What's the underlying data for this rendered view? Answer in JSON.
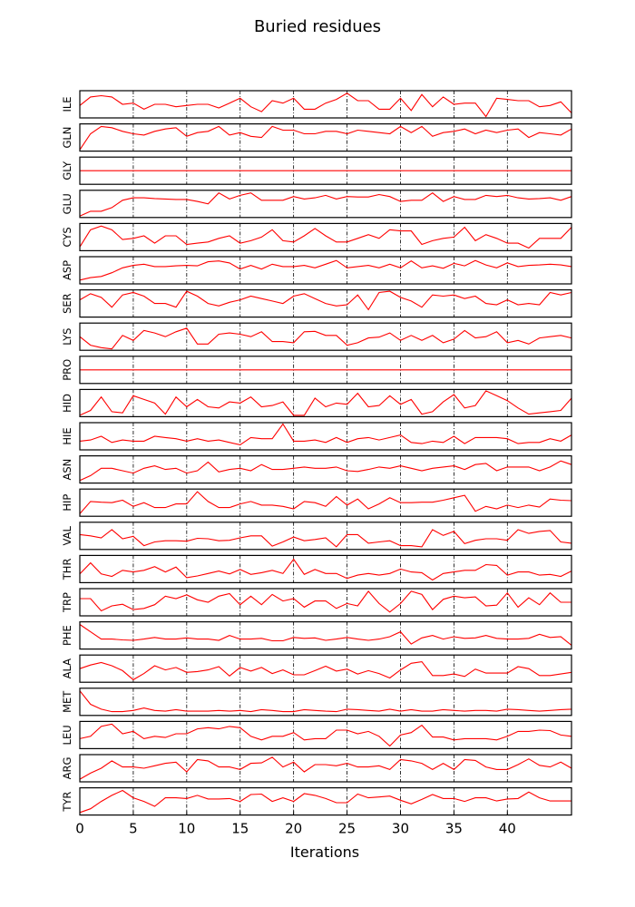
{
  "chart_data": {
    "type": "line",
    "title": "Buried residues",
    "xlabel": "Iterations",
    "ylabel": "",
    "xlim": [
      0,
      46
    ],
    "xticks": [
      0,
      5,
      10,
      15,
      20,
      25,
      30,
      35,
      40
    ],
    "grid": "vertical dash-dot at x ticks",
    "line_color": "#ff0000",
    "x": [
      0,
      1,
      2,
      3,
      4,
      5,
      6,
      7,
      8,
      9,
      10,
      11,
      12,
      13,
      14,
      15,
      16,
      17,
      18,
      19,
      20,
      21,
      22,
      23,
      24,
      25,
      26,
      27,
      28,
      29,
      30,
      31,
      32,
      33,
      34,
      35,
      36,
      37,
      38,
      39,
      40,
      41,
      42,
      43,
      44,
      45,
      46
    ],
    "series": [
      {
        "name": "ILE",
        "ylim": [
          0,
          1
        ],
        "values": [
          0.45,
          0.8,
          0.85,
          0.8,
          0.5,
          0.55,
          0.3,
          0.5,
          0.5,
          0.4,
          0.45,
          0.5,
          0.5,
          0.35,
          0.55,
          0.75,
          0.4,
          0.2,
          0.65,
          0.55,
          0.75,
          0.3,
          0.3,
          0.55,
          0.7,
          0.95,
          0.65,
          0.65,
          0.3,
          0.3,
          0.75,
          0.25,
          0.9,
          0.4,
          0.8,
          0.5,
          0.55,
          0.55,
          0.0,
          0.75,
          0.7,
          0.65,
          0.65,
          0.4,
          0.45,
          0.6,
          0.15
        ]
      },
      {
        "name": "GLN",
        "ylim": [
          0,
          1
        ],
        "values": [
          0.0,
          0.65,
          0.95,
          0.9,
          0.75,
          0.65,
          0.6,
          0.75,
          0.85,
          0.9,
          0.55,
          0.7,
          0.75,
          0.95,
          0.6,
          0.7,
          0.55,
          0.5,
          0.95,
          0.8,
          0.8,
          0.65,
          0.65,
          0.75,
          0.75,
          0.65,
          0.8,
          0.75,
          0.7,
          0.65,
          0.95,
          0.7,
          0.95,
          0.55,
          0.7,
          0.75,
          0.85,
          0.65,
          0.8,
          0.7,
          0.8,
          0.85,
          0.5,
          0.7,
          0.65,
          0.6,
          0.85
        ]
      },
      {
        "name": "GLY",
        "ylim": [
          0,
          1
        ],
        "values": [
          0.5,
          0.5,
          0.5,
          0.5,
          0.5,
          0.5,
          0.5,
          0.5,
          0.5,
          0.5,
          0.5,
          0.5,
          0.5,
          0.5,
          0.5,
          0.5,
          0.5,
          0.5,
          0.5,
          0.5,
          0.5,
          0.5,
          0.5,
          0.5,
          0.5,
          0.5,
          0.5,
          0.5,
          0.5,
          0.5,
          0.5,
          0.5,
          0.5,
          0.5,
          0.5,
          0.5,
          0.5,
          0.5,
          0.5,
          0.5,
          0.5,
          0.5,
          0.5,
          0.5,
          0.5,
          0.5,
          0.5
        ]
      },
      {
        "name": "GLU",
        "ylim": [
          0,
          1
        ],
        "values": [
          0.0,
          0.2,
          0.2,
          0.35,
          0.65,
          0.75,
          0.75,
          0.72,
          0.7,
          0.68,
          0.68,
          0.6,
          0.5,
          0.95,
          0.7,
          0.85,
          0.95,
          0.65,
          0.65,
          0.65,
          0.8,
          0.7,
          0.75,
          0.85,
          0.7,
          0.8,
          0.78,
          0.78,
          0.88,
          0.8,
          0.6,
          0.65,
          0.65,
          0.95,
          0.6,
          0.8,
          0.68,
          0.68,
          0.85,
          0.8,
          0.85,
          0.75,
          0.7,
          0.72,
          0.75,
          0.65,
          0.8
        ]
      },
      {
        "name": "CYS",
        "ylim": [
          0,
          1
        ],
        "values": [
          0.1,
          0.8,
          0.95,
          0.8,
          0.4,
          0.45,
          0.55,
          0.25,
          0.55,
          0.55,
          0.2,
          0.25,
          0.3,
          0.45,
          0.55,
          0.25,
          0.35,
          0.5,
          0.8,
          0.35,
          0.3,
          0.55,
          0.85,
          0.55,
          0.3,
          0.3,
          0.45,
          0.6,
          0.45,
          0.8,
          0.75,
          0.75,
          0.2,
          0.35,
          0.45,
          0.5,
          0.9,
          0.35,
          0.6,
          0.45,
          0.25,
          0.25,
          0.05,
          0.45,
          0.45,
          0.45,
          0.9
        ]
      },
      {
        "name": "ASP",
        "ylim": [
          0,
          1
        ],
        "values": [
          0.1,
          0.2,
          0.25,
          0.4,
          0.6,
          0.7,
          0.75,
          0.65,
          0.65,
          0.68,
          0.7,
          0.68,
          0.85,
          0.88,
          0.8,
          0.55,
          0.7,
          0.55,
          0.75,
          0.65,
          0.65,
          0.7,
          0.6,
          0.75,
          0.9,
          0.6,
          0.65,
          0.7,
          0.6,
          0.75,
          0.6,
          0.88,
          0.6,
          0.68,
          0.58,
          0.78,
          0.68,
          0.9,
          0.72,
          0.6,
          0.8,
          0.65,
          0.7,
          0.72,
          0.75,
          0.72,
          0.65
        ]
      },
      {
        "name": "SER",
        "ylim": [
          0,
          1
        ],
        "values": [
          0.65,
          0.9,
          0.75,
          0.35,
          0.85,
          0.95,
          0.8,
          0.5,
          0.5,
          0.35,
          1.0,
          0.8,
          0.5,
          0.4,
          0.55,
          0.65,
          0.8,
          0.7,
          0.6,
          0.5,
          0.8,
          0.9,
          0.7,
          0.5,
          0.4,
          0.45,
          0.85,
          0.25,
          0.95,
          1.0,
          0.75,
          0.6,
          0.35,
          0.85,
          0.8,
          0.85,
          0.7,
          0.8,
          0.5,
          0.45,
          0.65,
          0.45,
          0.5,
          0.45,
          0.95,
          0.85,
          0.95
        ]
      },
      {
        "name": "LYS",
        "ylim": [
          0,
          1
        ],
        "values": [
          0.5,
          0.15,
          0.05,
          0.0,
          0.55,
          0.35,
          0.75,
          0.65,
          0.5,
          0.7,
          0.85,
          0.2,
          0.2,
          0.6,
          0.65,
          0.6,
          0.5,
          0.7,
          0.3,
          0.3,
          0.25,
          0.7,
          0.72,
          0.55,
          0.55,
          0.15,
          0.25,
          0.45,
          0.48,
          0.65,
          0.35,
          0.55,
          0.35,
          0.55,
          0.25,
          0.4,
          0.75,
          0.45,
          0.5,
          0.7,
          0.25,
          0.35,
          0.2,
          0.45,
          0.5,
          0.55,
          0.45
        ]
      },
      {
        "name": "PRO",
        "ylim": [
          0,
          1
        ],
        "values": [
          0.5,
          0.5,
          0.5,
          0.5,
          0.5,
          0.5,
          0.5,
          0.5,
          0.5,
          0.5,
          0.5,
          0.5,
          0.5,
          0.5,
          0.5,
          0.5,
          0.5,
          0.5,
          0.5,
          0.5,
          0.5,
          0.5,
          0.5,
          0.5,
          0.5,
          0.5,
          0.5,
          0.5,
          0.5,
          0.5,
          0.5,
          0.5,
          0.5,
          0.5,
          0.5,
          0.5,
          0.5,
          0.5,
          0.5,
          0.5,
          0.5,
          0.5,
          0.5,
          0.5,
          0.5,
          0.5,
          0.5
        ]
      },
      {
        "name": "HID",
        "ylim": [
          0,
          1
        ],
        "values": [
          0.0,
          0.2,
          0.75,
          0.15,
          0.1,
          0.8,
          0.65,
          0.5,
          0.05,
          0.75,
          0.35,
          0.65,
          0.35,
          0.3,
          0.55,
          0.5,
          0.75,
          0.35,
          0.4,
          0.55,
          0.0,
          0.0,
          0.7,
          0.35,
          0.5,
          0.45,
          0.9,
          0.35,
          0.4,
          0.8,
          0.45,
          0.65,
          0.05,
          0.15,
          0.55,
          0.85,
          0.3,
          0.4,
          1.0,
          0.8,
          0.6,
          0.3,
          0.05,
          0.1,
          0.15,
          0.2,
          0.7
        ]
      },
      {
        "name": "HIE",
        "ylim": [
          0,
          1
        ],
        "values": [
          0.3,
          0.35,
          0.5,
          0.25,
          0.35,
          0.3,
          0.3,
          0.5,
          0.45,
          0.4,
          0.3,
          0.4,
          0.3,
          0.35,
          0.25,
          0.15,
          0.45,
          0.4,
          0.4,
          1.0,
          0.3,
          0.3,
          0.35,
          0.25,
          0.45,
          0.25,
          0.4,
          0.45,
          0.35,
          0.45,
          0.55,
          0.25,
          0.2,
          0.3,
          0.25,
          0.5,
          0.2,
          0.45,
          0.45,
          0.45,
          0.4,
          0.2,
          0.25,
          0.25,
          0.4,
          0.3,
          0.55
        ]
      },
      {
        "name": "ASN",
        "ylim": [
          0,
          1
        ],
        "values": [
          0.05,
          0.25,
          0.55,
          0.55,
          0.45,
          0.35,
          0.55,
          0.65,
          0.5,
          0.55,
          0.35,
          0.45,
          0.8,
          0.4,
          0.5,
          0.55,
          0.45,
          0.7,
          0.5,
          0.5,
          0.55,
          0.6,
          0.55,
          0.55,
          0.6,
          0.45,
          0.42,
          0.5,
          0.6,
          0.55,
          0.65,
          0.55,
          0.45,
          0.55,
          0.6,
          0.65,
          0.5,
          0.7,
          0.75,
          0.45,
          0.6,
          0.6,
          0.6,
          0.45,
          0.6,
          0.85,
          0.7
        ]
      },
      {
        "name": "HIP",
        "ylim": [
          0,
          1
        ],
        "values": [
          0.05,
          0.55,
          0.52,
          0.5,
          0.6,
          0.35,
          0.5,
          0.3,
          0.3,
          0.45,
          0.45,
          0.95,
          0.55,
          0.3,
          0.3,
          0.45,
          0.55,
          0.4,
          0.4,
          0.35,
          0.25,
          0.55,
          0.5,
          0.35,
          0.75,
          0.4,
          0.65,
          0.25,
          0.45,
          0.7,
          0.5,
          0.5,
          0.52,
          0.52,
          0.6,
          0.7,
          0.8,
          0.15,
          0.35,
          0.25,
          0.4,
          0.3,
          0.4,
          0.32,
          0.65,
          0.6,
          0.58
        ]
      },
      {
        "name": "VAL",
        "ylim": [
          0,
          1
        ],
        "values": [
          0.55,
          0.5,
          0.42,
          0.75,
          0.38,
          0.48,
          0.1,
          0.25,
          0.3,
          0.3,
          0.28,
          0.4,
          0.38,
          0.3,
          0.32,
          0.42,
          0.5,
          0.5,
          0.08,
          0.25,
          0.45,
          0.3,
          0.35,
          0.42,
          0.05,
          0.55,
          0.55,
          0.2,
          0.25,
          0.3,
          0.1,
          0.1,
          0.05,
          0.75,
          0.52,
          0.68,
          0.18,
          0.32,
          0.38,
          0.38,
          0.32,
          0.75,
          0.6,
          0.68,
          0.72,
          0.25,
          0.2
        ]
      },
      {
        "name": "THR",
        "ylim": [
          0,
          1
        ],
        "values": [
          0.3,
          0.75,
          0.3,
          0.2,
          0.45,
          0.38,
          0.45,
          0.6,
          0.38,
          0.58,
          0.15,
          0.22,
          0.32,
          0.42,
          0.3,
          0.48,
          0.28,
          0.35,
          0.45,
          0.32,
          0.9,
          0.28,
          0.48,
          0.32,
          0.32,
          0.12,
          0.25,
          0.32,
          0.25,
          0.32,
          0.5,
          0.38,
          0.35,
          0.05,
          0.32,
          0.38,
          0.45,
          0.45,
          0.68,
          0.65,
          0.25,
          0.38,
          0.38,
          0.25,
          0.28,
          0.2,
          0.42
        ]
      },
      {
        "name": "TRP",
        "ylim": [
          0,
          1
        ],
        "values": [
          0.65,
          0.65,
          0.15,
          0.35,
          0.42,
          0.2,
          0.25,
          0.4,
          0.75,
          0.65,
          0.8,
          0.6,
          0.5,
          0.75,
          0.85,
          0.4,
          0.75,
          0.4,
          0.82,
          0.55,
          0.65,
          0.3,
          0.55,
          0.55,
          0.25,
          0.45,
          0.35,
          0.95,
          0.45,
          0.1,
          0.45,
          0.95,
          0.82,
          0.2,
          0.62,
          0.75,
          0.68,
          0.72,
          0.35,
          0.38,
          0.88,
          0.3,
          0.68,
          0.4,
          0.88,
          0.5,
          0.5
        ]
      },
      {
        "name": "PHE",
        "ylim": [
          0,
          1
        ],
        "values": [
          0.95,
          0.65,
          0.35,
          0.35,
          0.32,
          0.3,
          0.35,
          0.42,
          0.35,
          0.35,
          0.4,
          0.35,
          0.35,
          0.3,
          0.5,
          0.35,
          0.35,
          0.38,
          0.28,
          0.28,
          0.42,
          0.38,
          0.4,
          0.3,
          0.35,
          0.42,
          0.35,
          0.3,
          0.35,
          0.45,
          0.65,
          0.15,
          0.4,
          0.5,
          0.35,
          0.45,
          0.38,
          0.4,
          0.5,
          0.38,
          0.35,
          0.35,
          0.38,
          0.55,
          0.42,
          0.45,
          0.1
        ]
      },
      {
        "name": "ALA",
        "ylim": [
          0,
          1
        ],
        "values": [
          0.5,
          0.65,
          0.75,
          0.62,
          0.42,
          0.05,
          0.3,
          0.62,
          0.45,
          0.55,
          0.35,
          0.38,
          0.45,
          0.58,
          0.2,
          0.55,
          0.4,
          0.55,
          0.3,
          0.45,
          0.25,
          0.25,
          0.42,
          0.6,
          0.4,
          0.48,
          0.28,
          0.42,
          0.3,
          0.12,
          0.45,
          0.72,
          0.78,
          0.22,
          0.22,
          0.28,
          0.18,
          0.48,
          0.32,
          0.32,
          0.32,
          0.58,
          0.5,
          0.22,
          0.22,
          0.28,
          0.35
        ]
      },
      {
        "name": "MET",
        "ylim": [
          0,
          1
        ],
        "values": [
          0.95,
          0.4,
          0.2,
          0.1,
          0.1,
          0.15,
          0.25,
          0.15,
          0.12,
          0.18,
          0.12,
          0.12,
          0.12,
          0.15,
          0.12,
          0.15,
          0.1,
          0.18,
          0.15,
          0.1,
          0.1,
          0.18,
          0.15,
          0.12,
          0.1,
          0.2,
          0.18,
          0.15,
          0.12,
          0.2,
          0.12,
          0.18,
          0.12,
          0.12,
          0.18,
          0.15,
          0.12,
          0.15,
          0.15,
          0.12,
          0.2,
          0.18,
          0.15,
          0.12,
          0.15,
          0.18,
          0.2
        ]
      },
      {
        "name": "LEU",
        "ylim": [
          0,
          1
        ],
        "values": [
          0.35,
          0.45,
          0.85,
          0.95,
          0.55,
          0.65,
          0.35,
          0.45,
          0.4,
          0.55,
          0.55,
          0.75,
          0.8,
          0.75,
          0.85,
          0.8,
          0.45,
          0.3,
          0.45,
          0.45,
          0.6,
          0.3,
          0.35,
          0.35,
          0.7,
          0.7,
          0.55,
          0.65,
          0.45,
          0.05,
          0.5,
          0.6,
          0.9,
          0.42,
          0.42,
          0.3,
          0.35,
          0.35,
          0.35,
          0.3,
          0.45,
          0.65,
          0.65,
          0.7,
          0.68,
          0.5,
          0.45
        ]
      },
      {
        "name": "ARG",
        "ylim": [
          0,
          1
        ],
        "values": [
          0.05,
          0.3,
          0.5,
          0.8,
          0.55,
          0.55,
          0.5,
          0.6,
          0.7,
          0.75,
          0.35,
          0.85,
          0.8,
          0.55,
          0.55,
          0.45,
          0.7,
          0.72,
          0.95,
          0.55,
          0.75,
          0.35,
          0.65,
          0.65,
          0.6,
          0.7,
          0.55,
          0.55,
          0.6,
          0.45,
          0.85,
          0.8,
          0.7,
          0.45,
          0.7,
          0.45,
          0.85,
          0.82,
          0.55,
          0.45,
          0.45,
          0.65,
          0.88,
          0.62,
          0.55,
          0.75,
          0.5
        ]
      },
      {
        "name": "TYR",
        "ylim": [
          0,
          1
        ],
        "values": [
          0.05,
          0.2,
          0.5,
          0.75,
          0.95,
          0.65,
          0.5,
          0.3,
          0.65,
          0.65,
          0.62,
          0.75,
          0.6,
          0.6,
          0.62,
          0.5,
          0.78,
          0.8,
          0.5,
          0.65,
          0.5,
          0.82,
          0.75,
          0.62,
          0.45,
          0.45,
          0.8,
          0.65,
          0.68,
          0.72,
          0.55,
          0.4,
          0.58,
          0.78,
          0.62,
          0.62,
          0.5,
          0.65,
          0.65,
          0.52,
          0.6,
          0.62,
          0.88,
          0.65,
          0.52,
          0.52,
          0.52
        ]
      }
    ]
  }
}
